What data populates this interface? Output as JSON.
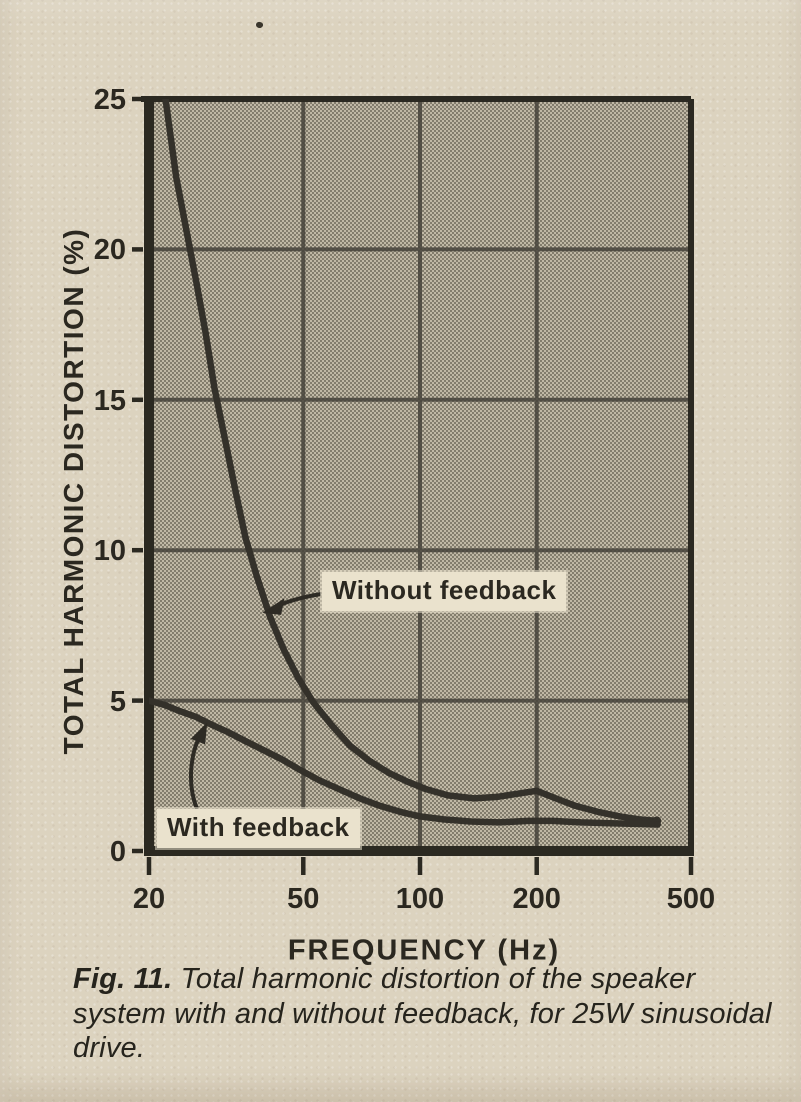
{
  "figure": {
    "label": "Fig. 11.",
    "caption": "Total harmonic distortion of the speaker system with and without feedback, for 25W sinusoidal drive."
  },
  "chart_data": {
    "type": "line",
    "title": "",
    "xlabel": "FREQUENCY (Hz)",
    "ylabel": "TOTAL HARMONIC DISTORTION (%)",
    "x_scale": "log",
    "xlim": [
      20,
      500
    ],
    "ylim": [
      0,
      25
    ],
    "x_ticks": [
      20,
      50,
      100,
      200,
      500
    ],
    "y_ticks": [
      0,
      5,
      10,
      15,
      20,
      25
    ],
    "grid": true,
    "plot_fill": "halftone-dots",
    "series": [
      {
        "name": "Without feedback",
        "x": [
          21.8,
          22.5,
          23.5,
          25,
          26.5,
          28,
          29.5,
          31.5,
          33.5,
          35.5,
          38,
          41,
          44.5,
          48.5,
          53,
          59,
          66,
          74,
          83,
          93,
          104,
          118,
          138,
          158,
          178,
          200,
          224,
          252,
          288,
          328,
          368,
          408
        ],
        "y": [
          25.5,
          24.2,
          22.4,
          20.6,
          18.9,
          17.2,
          15.4,
          13.6,
          11.9,
          10.4,
          9.1,
          7.8,
          6.7,
          5.75,
          4.95,
          4.2,
          3.5,
          3.0,
          2.6,
          2.3,
          2.05,
          1.85,
          1.75,
          1.8,
          1.9,
          2.0,
          1.75,
          1.5,
          1.3,
          1.15,
          1.05,
          1.0
        ]
      },
      {
        "name": "With feedback",
        "x": [
          20,
          22,
          24,
          26.5,
          29,
          32,
          35.5,
          39.5,
          44,
          49,
          55,
          62,
          70,
          79,
          89,
          100,
          115,
          135,
          160,
          190,
          220,
          260,
          310,
          360,
          410
        ],
        "y": [
          5.0,
          4.85,
          4.65,
          4.45,
          4.2,
          3.95,
          3.65,
          3.35,
          3.05,
          2.7,
          2.35,
          2.05,
          1.75,
          1.5,
          1.3,
          1.15,
          1.05,
          0.98,
          0.95,
          1.0,
          1.0,
          0.95,
          0.92,
          0.9,
          0.88
        ]
      }
    ],
    "annotations": [
      {
        "text": "Without feedback",
        "arrow_points_to": {
          "x": 40,
          "y": 8
        }
      },
      {
        "text": "With feedback",
        "arrow_points_to": {
          "x": 28,
          "y": 4.2
        }
      }
    ]
  },
  "colors": {
    "paper": "#dcd3bf",
    "ink": "#2e2b24",
    "curve": "#34312a",
    "grid": "#45423a",
    "plot_base": "#c0b8a5",
    "halftone_dot": "#6a6556",
    "label_bg": "#eae2cd"
  }
}
